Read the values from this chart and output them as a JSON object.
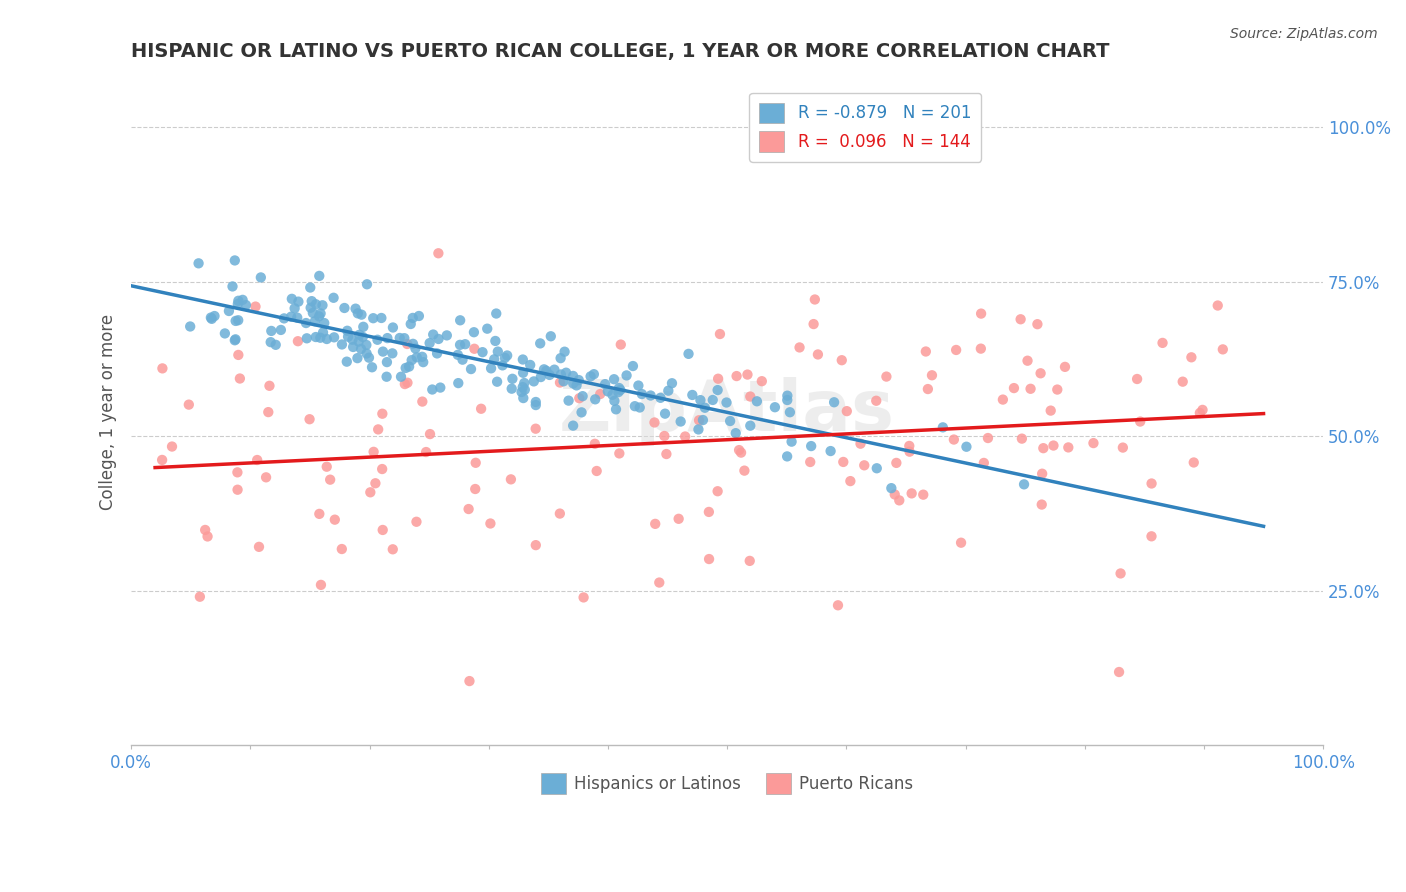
{
  "title": "HISPANIC OR LATINO VS PUERTO RICAN COLLEGE, 1 YEAR OR MORE CORRELATION CHART",
  "source": "Source: ZipAtlas.com",
  "xlabel": "",
  "ylabel": "College, 1 year or more",
  "xlim": [
    0.0,
    1.0
  ],
  "ylim": [
    0.0,
    1.0
  ],
  "x_tick_labels": [
    "0.0%",
    "100.0%"
  ],
  "y_tick_labels": [
    "25.0%",
    "50.0%",
    "75.0%",
    "100.0%"
  ],
  "y_tick_positions": [
    0.25,
    0.5,
    0.75,
    1.0
  ],
  "legend_blue_label": "R = -0.879   N = 201",
  "legend_pink_label": "R =  0.096   N = 144",
  "legend_bottom_blue": "Hispanics or Latinos",
  "legend_bottom_pink": "Puerto Ricans",
  "blue_color": "#6baed6",
  "pink_color": "#fb9a99",
  "blue_line_color": "#3182bd",
  "pink_line_color": "#e31a1c",
  "blue_R": -0.879,
  "blue_N": 201,
  "pink_R": 0.096,
  "pink_N": 144,
  "watermark": "ZipAtlas",
  "background_color": "#ffffff",
  "grid_color": "#cccccc",
  "title_color": "#333333",
  "axis_label_color": "#4a90d9",
  "seed_blue": 42,
  "seed_pink": 99
}
